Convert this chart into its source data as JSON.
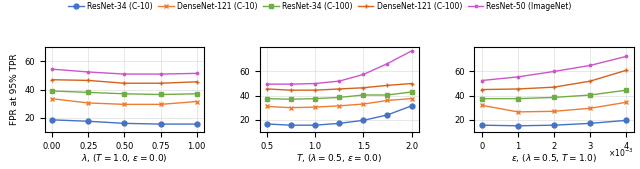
{
  "legend_labels": [
    "ResNet-34 (C-10)",
    "DenseNet-121 (C-10)",
    "ResNet-34 (C-100)",
    "DenseNet-121 (C-100)",
    "ResNet-50 (ImageNet)"
  ],
  "legend_colors": [
    "#2176ae",
    "#d4a017",
    "#2e8b57",
    "#d2691e",
    "#da70d6"
  ],
  "legend_markers": [
    "o",
    "x",
    "s",
    "+",
    "*"
  ],
  "plot1": {
    "xlabel": "$\\lambda$, ($T = 1.0$, $\\varepsilon = 0.0$)",
    "x": [
      0.0,
      0.25,
      0.5,
      0.75,
      1.0
    ],
    "ylim": [
      10,
      70
    ],
    "yticks": [
      20,
      40,
      60
    ],
    "series": {
      "ResNet-34 (C-10)": [
        18.5,
        17.5,
        16.0,
        15.5,
        15.5
      ],
      "DenseNet-121 (C-10)": [
        33.5,
        30.5,
        29.5,
        29.5,
        31.5
      ],
      "ResNet-34 (C-100)": [
        39.0,
        38.0,
        37.0,
        36.5,
        37.0
      ],
      "DenseNet-121 (C-100)": [
        47.0,
        46.5,
        44.5,
        44.5,
        45.5
      ],
      "ResNet-50 (ImageNet)": [
        54.5,
        52.5,
        51.0,
        51.0,
        51.5
      ]
    }
  },
  "plot2": {
    "xlabel": "$T$, ($\\lambda = 0.5$, $\\varepsilon = 0.0$)",
    "x": [
      0.5,
      0.75,
      1.0,
      1.25,
      1.5,
      1.75,
      2.0
    ],
    "ylim": [
      10,
      80
    ],
    "yticks": [
      20,
      40,
      60
    ],
    "series": {
      "ResNet-34 (C-10)": [
        16.5,
        15.5,
        15.5,
        17.0,
        19.5,
        24.0,
        31.5
      ],
      "DenseNet-121 (C-10)": [
        31.0,
        30.0,
        30.5,
        31.5,
        33.0,
        36.0,
        37.5
      ],
      "ResNet-34 (C-100)": [
        37.5,
        37.0,
        37.5,
        38.5,
        40.5,
        40.5,
        43.0
      ],
      "DenseNet-121 (C-100)": [
        45.5,
        44.5,
        44.5,
        45.5,
        46.5,
        48.5,
        50.0
      ],
      "ResNet-50 (ImageNet)": [
        49.5,
        49.5,
        50.0,
        52.0,
        57.5,
        66.5,
        77.0
      ]
    }
  },
  "plot3": {
    "xlabel": "$\\varepsilon$, ($\\lambda = 0.5$, $T = 1.0$)",
    "x": [
      0,
      0.001,
      0.002,
      0.003,
      0.004
    ],
    "xlim": [
      -0.0001,
      0.0043
    ],
    "xticks": [
      0,
      0.001,
      0.002,
      0.003,
      0.004
    ],
    "xticklabels": [
      "0",
      "1",
      "2",
      "3",
      "4"
    ],
    "xlabel_suffix": "$\\times 10^{-3}$",
    "ylim": [
      10,
      80
    ],
    "yticks": [
      20,
      40,
      60
    ],
    "series": {
      "ResNet-34 (C-10)": [
        15.5,
        15.0,
        15.5,
        17.0,
        19.5
      ],
      "DenseNet-121 (C-10)": [
        32.0,
        26.5,
        27.0,
        29.5,
        34.5
      ],
      "ResNet-34 (C-100)": [
        37.5,
        37.5,
        38.5,
        40.5,
        44.5
      ],
      "DenseNet-121 (C-100)": [
        45.0,
        45.5,
        47.0,
        52.0,
        61.0
      ],
      "ResNet-50 (ImageNet)": [
        52.5,
        55.5,
        60.0,
        65.0,
        72.5
      ]
    }
  },
  "ylabel": "FPR at 95% TPR",
  "colors": {
    "ResNet-34 (C-10)": "#4472c4",
    "DenseNet-121 (C-10)": "#ed7d31",
    "ResNet-34 (C-100)": "#70ad47",
    "DenseNet-121 (C-100)": "#d4631c",
    "ResNet-50 (ImageNet)": "#cc55cc"
  },
  "markers": {
    "ResNet-34 (C-10)": "o",
    "DenseNet-121 (C-10)": "x",
    "ResNet-34 (C-100)": "s",
    "DenseNet-121 (C-100)": "+",
    "ResNet-50 (ImageNet)": "."
  },
  "markersize": 3.5,
  "linewidth": 1.0
}
